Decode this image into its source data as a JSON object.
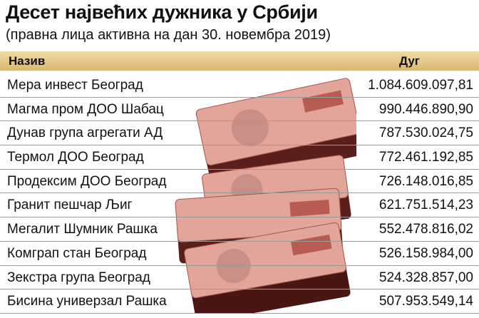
{
  "header": {
    "title": "Десет највећих дужника у Србији",
    "subtitle": "(правна лица активна на дан 30. новембра 2019)"
  },
  "table": {
    "columns": [
      "Назив",
      "Дуг"
    ],
    "rows": [
      [
        "Мера инвест Београд",
        "1.084.609.097,81"
      ],
      [
        "Магма пром ДОО Шабац",
        "990.446.890,90"
      ],
      [
        "Дунав група агрегати АД",
        "787.530.024,75"
      ],
      [
        "Термол ДОО Београд",
        "772.461.192,85"
      ],
      [
        "Продексим ДОО Београд",
        "726.148.016,85"
      ],
      [
        "Гранит пешчар Љиг",
        "621.751.514,23"
      ],
      [
        "Мегалит Шумник Рашка",
        "552.478.816,02"
      ],
      [
        "Комграп стан Београд",
        "526.158.984,00"
      ],
      [
        "Зекстра група Београд",
        "524.328.857,00"
      ],
      [
        "Бисина универзал Рашка",
        "507.953.549,14"
      ]
    ]
  }
}
